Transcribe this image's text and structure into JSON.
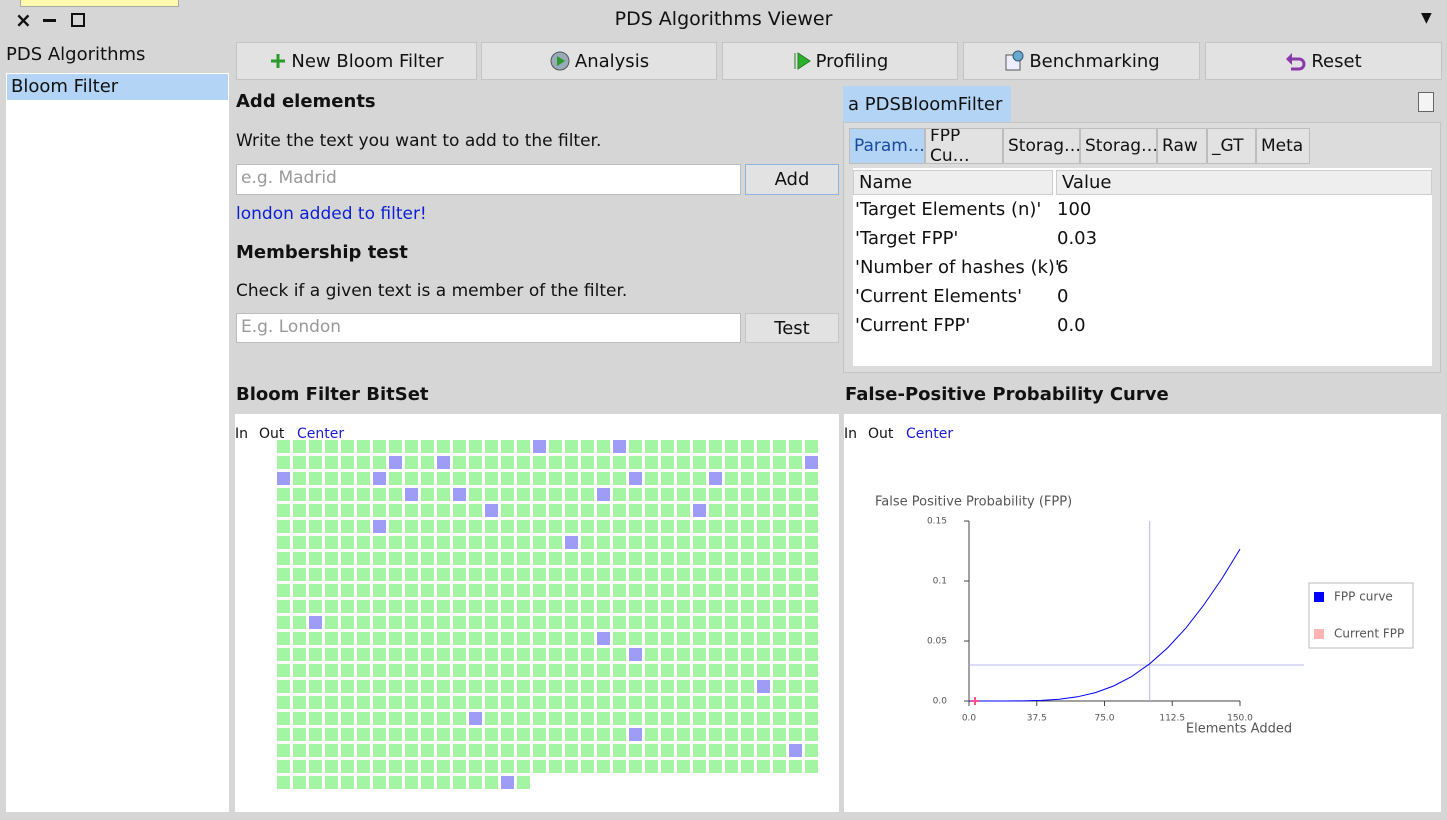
{
  "window": {
    "title": "PDS Algorithms Viewer"
  },
  "sidebar": {
    "title": "PDS Algorithms",
    "items": [
      "Bloom Filter"
    ]
  },
  "toolbar": {
    "buttons": [
      "New Bloom Filter",
      "Analysis",
      "Profiling",
      "Benchmarking",
      "Reset"
    ]
  },
  "add_elements": {
    "title": "Add elements",
    "hint": "Write the text you want to add to the filter.",
    "placeholder": "e.g. Madrid",
    "button": "Add",
    "status": "london added to filter!"
  },
  "membership_test": {
    "title": "Membership test",
    "hint": "Check if a given text is a member of the filter.",
    "placeholder": "E.g. London",
    "button": "Test"
  },
  "inspector": {
    "title": "a PDSBloomFilter",
    "tabs": [
      "Param…",
      "FPP Cu…",
      "Storag…",
      "Storag…",
      "Raw",
      "_GT",
      "Meta"
    ],
    "table": {
      "columns": [
        "Name",
        "Value"
      ],
      "rows": [
        [
          "'Target Elements (n)'",
          "100"
        ],
        [
          "'Target FPP'",
          "0.03"
        ],
        [
          "'Number of hashes (k)'",
          "6"
        ],
        [
          "'Current Elements'",
          "0"
        ],
        [
          "'Current FPP'",
          "0.0"
        ]
      ]
    }
  },
  "bitset": {
    "title": "Bloom Filter BitSet",
    "zoom": [
      "In",
      "Out",
      "Center"
    ],
    "size": 730,
    "set_bits": [
      16,
      21,
      41,
      44,
      67,
      68,
      74,
      90,
      95,
      110,
      113,
      122,
      149,
      162,
      176,
      222,
      376,
      428,
      464,
      540,
      590,
      634,
      678,
      728
    ]
  },
  "fpp_chart": {
    "heading": "False-Positive Probability Curve",
    "zoom": [
      "In",
      "Out",
      "Center"
    ],
    "chart_data": {
      "type": "line",
      "title": "False Positive Probability (FPP)",
      "x_label": "Elements Added",
      "x": [
        0,
        10,
        20,
        30,
        40,
        50,
        60,
        70,
        80,
        90,
        100,
        110,
        120,
        130,
        140,
        150
      ],
      "series": [
        {
          "name": "FPP curve",
          "color": "#0000ff",
          "values": [
            0,
            0,
            0,
            0.0001,
            0.0005,
            0.0015,
            0.0035,
            0.007,
            0.0125,
            0.0204,
            0.031,
            0.0444,
            0.0607,
            0.0801,
            0.102,
            0.1266
          ]
        },
        {
          "name": "Current FPP",
          "color": "#ffb3b3",
          "values": [
            0,
            null,
            null,
            null,
            null,
            null,
            null,
            null,
            null,
            null,
            null,
            null,
            null,
            null,
            null,
            null
          ]
        }
      ],
      "reference_lines": {
        "x": 100,
        "y": 0.03,
        "color": "#b8b8f0"
      },
      "xlim": [
        0,
        150
      ],
      "xticks": [
        {
          "value": 0,
          "label": "0.0"
        },
        37.5,
        {
          "value": 75,
          "label": "75.0"
        },
        112.5,
        {
          "value": 150,
          "label": "150.0"
        }
      ],
      "ylim": [
        0,
        0.15
      ],
      "yticks": [
        {
          "value": 0,
          "label": "0.0"
        },
        0.05,
        0.1,
        0.15
      ]
    }
  }
}
